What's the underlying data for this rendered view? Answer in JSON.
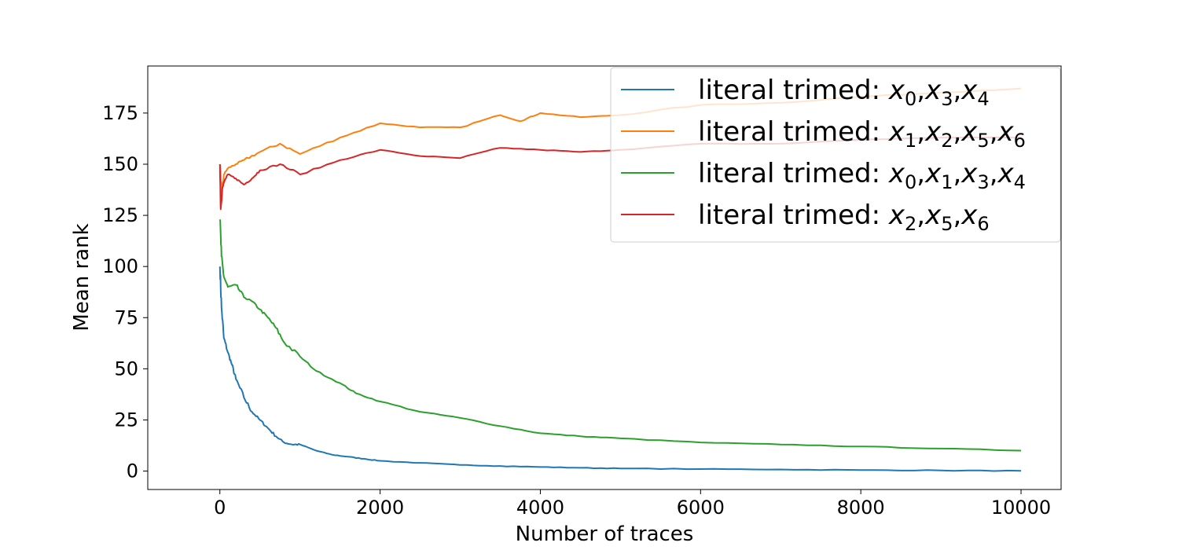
{
  "chart_data": {
    "type": "line",
    "xlabel": "Number of traces",
    "ylabel": "Mean rank",
    "xlim": [
      -900,
      10500
    ],
    "ylim": [
      -9,
      198
    ],
    "xticks": [
      0,
      2000,
      4000,
      6000,
      8000,
      10000
    ],
    "xtick_labels": [
      "0",
      "2000",
      "4000",
      "6000",
      "8000",
      "10000"
    ],
    "yticks": [
      0,
      25,
      50,
      75,
      100,
      125,
      150,
      175
    ],
    "ytick_labels": [
      "0",
      "25",
      "50",
      "75",
      "100",
      "125",
      "150",
      "175"
    ],
    "grid": false,
    "legend_position": "top-right",
    "series": [
      {
        "name": "literal trimed: x0,x3,x4",
        "legend_prefix": "literal trimed: ",
        "legend_vars": [
          [
            "x",
            "0"
          ],
          [
            "x",
            "3"
          ],
          [
            "x",
            "4"
          ]
        ],
        "color": "#1f77b4",
        "x": [
          1,
          20,
          50,
          100,
          150,
          200,
          300,
          400,
          500,
          600,
          700,
          800,
          900,
          1000,
          1200,
          1400,
          1600,
          1800,
          2000,
          2500,
          3000,
          3500,
          4000,
          4500,
          5000,
          6000,
          7000,
          8000,
          9000,
          10000
        ],
        "y": [
          100,
          80,
          65,
          58,
          52,
          45,
          36,
          29,
          25,
          21,
          17,
          14,
          13,
          13,
          10,
          8,
          7,
          6,
          5,
          4,
          3,
          2.5,
          2,
          1.6,
          1.3,
          1.0,
          0.8,
          0.5,
          0.3,
          0.1
        ]
      },
      {
        "name": "literal trimed: x1,x2,x5,x6",
        "legend_prefix": "literal trimed: ",
        "legend_vars": [
          [
            "x",
            "1"
          ],
          [
            "x",
            "2"
          ],
          [
            "x",
            "5"
          ],
          [
            "x",
            "6"
          ]
        ],
        "color": "#ff7f0e",
        "x": [
          1,
          20,
          50,
          100,
          200,
          300,
          500,
          750,
          1000,
          1500,
          2000,
          2500,
          3000,
          3500,
          3750,
          4000,
          4500,
          5000,
          6000,
          7000,
          8000,
          9000,
          10000
        ],
        "y": [
          150,
          135,
          145,
          148,
          150,
          152,
          156,
          160,
          155,
          163,
          170,
          168,
          168,
          174,
          171,
          175,
          173,
          174,
          179,
          180,
          183,
          185,
          187
        ]
      },
      {
        "name": "literal trimed: x0,x1,x3,x4",
        "legend_prefix": "literal trimed: ",
        "legend_vars": [
          [
            "x",
            "0"
          ],
          [
            "x",
            "1"
          ],
          [
            "x",
            "3"
          ],
          [
            "x",
            "4"
          ]
        ],
        "color": "#2ca02c",
        "x": [
          1,
          20,
          50,
          100,
          200,
          300,
          400,
          500,
          600,
          700,
          800,
          1000,
          1200,
          1500,
          1700,
          2000,
          2500,
          3000,
          3500,
          4000,
          4500,
          5000,
          6000,
          7000,
          8000,
          9000,
          10000
        ],
        "y": [
          123,
          105,
          95,
          90,
          91,
          85,
          83,
          79,
          75,
          70,
          63,
          56,
          49,
          43,
          38,
          34,
          29,
          26,
          22,
          18.5,
          17,
          16,
          14,
          13,
          12,
          11,
          10
        ]
      },
      {
        "name": "literal trimed: x2,x5,x6",
        "legend_prefix": "literal trimed: ",
        "legend_vars": [
          [
            "x",
            "2"
          ],
          [
            "x",
            "5"
          ],
          [
            "x",
            "6"
          ]
        ],
        "color": "#d62728",
        "x": [
          1,
          10,
          30,
          60,
          100,
          200,
          300,
          400,
          500,
          750,
          1000,
          1500,
          2000,
          2500,
          3000,
          3500,
          4000,
          4500,
          5000,
          6000,
          7000,
          8000,
          9000,
          10000
        ],
        "y": [
          150,
          128,
          138,
          142,
          145,
          143,
          140,
          143,
          147,
          150,
          145,
          152,
          157,
          154,
          153,
          158,
          157,
          156,
          157,
          160,
          160,
          162,
          163,
          163
        ]
      }
    ]
  }
}
